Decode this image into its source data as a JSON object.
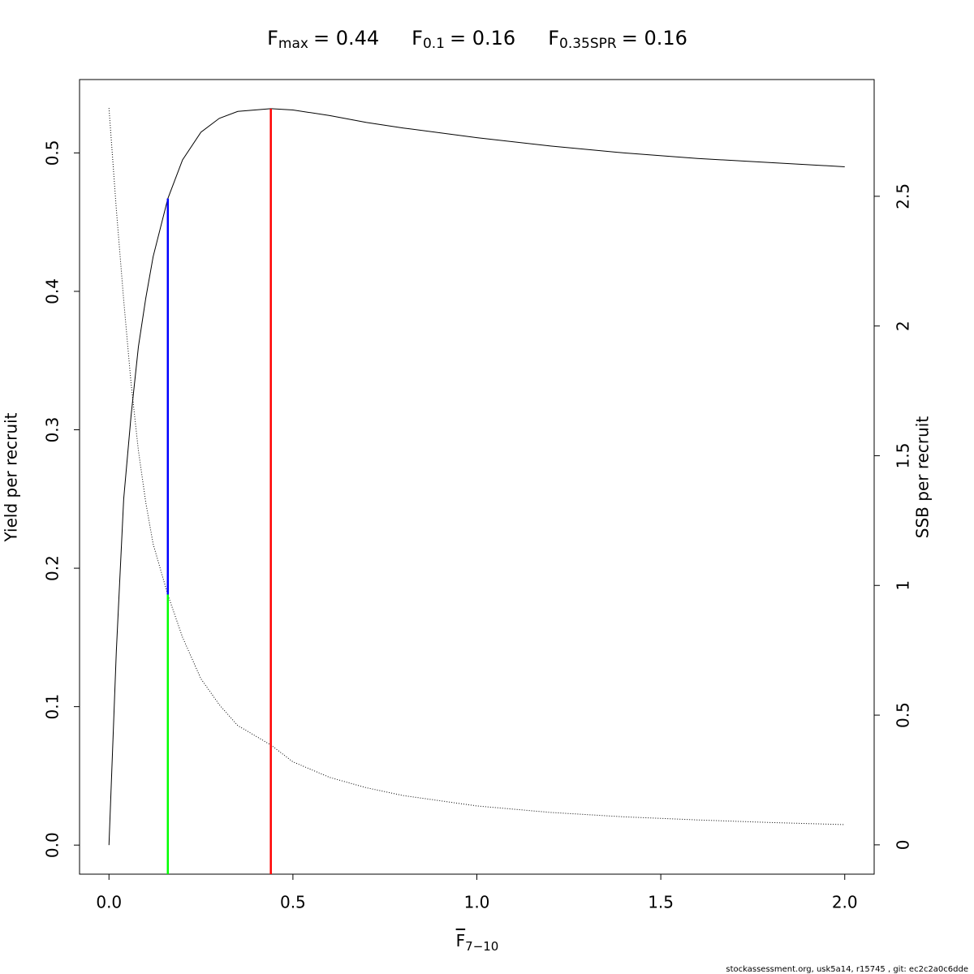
{
  "chart_data": {
    "type": "line",
    "title_parts": [
      {
        "symbol": "F",
        "subscript": "max",
        "equals": "= 0.44"
      },
      {
        "symbol": "F",
        "subscript": "0.1",
        "equals": "= 0.16"
      },
      {
        "symbol": "F",
        "subscript": "0.35SPR",
        "equals": "= 0.16"
      }
    ],
    "x_label": {
      "symbol": "F",
      "subscript": "7−10"
    },
    "y_label": "Yield per recruit",
    "y2_label": "SSB per recruit",
    "footer": "stockassessment.org, usk5a14, r15745 , git: ec2c2a0c6dde",
    "x": [
      0,
      0.02,
      0.04,
      0.06,
      0.08,
      0.1,
      0.12,
      0.16,
      0.2,
      0.25,
      0.3,
      0.35,
      0.44,
      0.5,
      0.6,
      0.7,
      0.8,
      1.0,
      1.2,
      1.4,
      1.6,
      1.8,
      2.0
    ],
    "series": [
      {
        "name": "Yield per recruit",
        "color": "#000000",
        "style": "solid",
        "values": [
          0,
          0.14,
          0.25,
          0.31,
          0.36,
          0.395,
          0.425,
          0.467,
          0.495,
          0.515,
          0.525,
          0.53,
          0.532,
          0.531,
          0.527,
          0.522,
          0.518,
          0.511,
          0.505,
          0.5,
          0.496,
          0.493,
          0.49
        ]
      },
      {
        "name": "SSB per recruit",
        "color": "#000000",
        "style": "dotted",
        "axis": "y2",
        "values": [
          2.84,
          2.45,
          2.1,
          1.78,
          1.52,
          1.32,
          1.16,
          0.964,
          0.8,
          0.64,
          0.54,
          0.46,
          0.385,
          0.32,
          0.26,
          0.22,
          0.19,
          0.15,
          0.125,
          0.108,
          0.096,
          0.086,
          0.078
        ]
      }
    ],
    "reference_lines": [
      {
        "color": "#ff0000",
        "x": 0.44,
        "y": [
          -0.021,
          0.532
        ]
      },
      {
        "color": "#0000ff",
        "x": 0.16,
        "y": [
          0.181,
          0.467
        ]
      },
      {
        "color": "#00ff00",
        "x": 0.16,
        "y": [
          -0.021,
          0.181
        ]
      }
    ],
    "xlim": [
      -0.08,
      2.08
    ],
    "ylim": [
      -0.021,
      0.553
    ],
    "y2lim": [
      -0.113,
      2.95
    ],
    "xticks": [
      {
        "value": 0,
        "label": "0.0"
      },
      0.5,
      {
        "value": 1,
        "label": "1.0"
      },
      1.5,
      {
        "value": 2,
        "label": "2.0"
      }
    ],
    "yticks": [
      {
        "value": 0,
        "label": "0.0"
      },
      0.1,
      0.2,
      0.3,
      0.4,
      0.5
    ],
    "y2ticks": [
      0,
      0.5,
      1,
      1.5,
      2,
      2.5
    ]
  }
}
